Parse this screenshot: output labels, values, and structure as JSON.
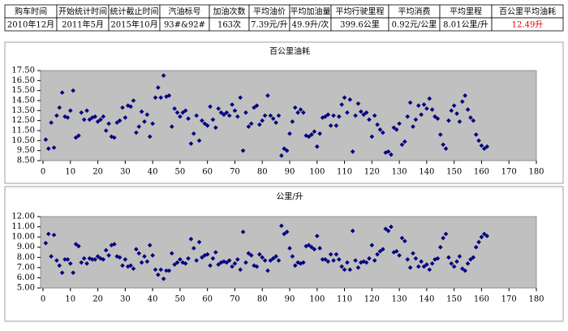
{
  "table": {
    "header": [
      "购车时间",
      "开始统计时间",
      "统计截止时间",
      "汽油标号",
      "加油次数",
      "平均油价",
      "平均加油量",
      "平均行驶里程",
      "平均消费",
      "平均里程",
      "百公里平均油耗"
    ],
    "rows": [
      [
        "2010年12月",
        "2011年5月",
        "2015年10月",
        "93#&92#",
        "163次",
        "7.39元/升",
        "49.9升/次",
        "399.6公里",
        "0.92元/公里",
        "8.01公里/升",
        "12.49升"
      ]
    ]
  },
  "chart_data": [
    {
      "type": "scatter",
      "title": "百公里油耗",
      "color": "#000080",
      "grid": false,
      "x": [
        1,
        2,
        3,
        4,
        5,
        6,
        7,
        8,
        9,
        10,
        11,
        12,
        13,
        14,
        15,
        16,
        17,
        18,
        19,
        20,
        21,
        22,
        23,
        24,
        25,
        26,
        27,
        28,
        29,
        30,
        31,
        32,
        33,
        34,
        35,
        36,
        37,
        38,
        39,
        40,
        41,
        42,
        43,
        44,
        45,
        46,
        47,
        48,
        49,
        50,
        51,
        52,
        53,
        54,
        55,
        56,
        57,
        58,
        59,
        60,
        61,
        62,
        63,
        64,
        65,
        66,
        67,
        68,
        69,
        70,
        71,
        72,
        73,
        74,
        75,
        76,
        77,
        78,
        79,
        80,
        81,
        82,
        83,
        84,
        85,
        86,
        87,
        88,
        89,
        90,
        91,
        92,
        93,
        94,
        95,
        96,
        97,
        98,
        99,
        100,
        101,
        102,
        103,
        104,
        105,
        106,
        107,
        108,
        109,
        110,
        111,
        112,
        113,
        114,
        115,
        116,
        117,
        118,
        119,
        120,
        121,
        122,
        123,
        124,
        125,
        126,
        127,
        128,
        129,
        130,
        131,
        132,
        133,
        134,
        135,
        136,
        137,
        138,
        139,
        140,
        141,
        142,
        143,
        144,
        145,
        146,
        147,
        148,
        149,
        150,
        151,
        152,
        153,
        154,
        155,
        156,
        157,
        158,
        159,
        160,
        161,
        162
      ],
      "values": [
        10.6,
        9.7,
        12.3,
        9.8,
        13.0,
        13.8,
        15.3,
        12.9,
        12.8,
        13.5,
        15.5,
        10.8,
        11.0,
        13.3,
        12.6,
        13.5,
        12.6,
        12.8,
        12.9,
        12.4,
        12.6,
        12.9,
        11.5,
        12.2,
        10.9,
        10.8,
        12.3,
        12.5,
        13.8,
        12.8,
        14.0,
        13.9,
        14.5,
        11.3,
        11.9,
        13.4,
        12.4,
        13.1,
        10.9,
        12.2,
        14.8,
        15.8,
        14.8,
        17.0,
        14.9,
        15.0,
        11.9,
        13.7,
        13.3,
        12.9,
        13.3,
        13.5,
        12.7,
        10.2,
        11.2,
        13.0,
        10.5,
        12.5,
        12.2,
        12.0,
        13.9,
        12.6,
        11.8,
        13.7,
        13.3,
        13.1,
        13.3,
        13.0,
        14.1,
        13.5,
        12.9,
        14.8,
        9.5,
        13.3,
        11.9,
        12.2,
        13.8,
        14.0,
        12.1,
        12.5,
        13.0,
        15.0,
        13.0,
        12.7,
        12.3,
        13.0,
        9.0,
        9.7,
        9.5,
        11.2,
        12.4,
        13.8,
        13.3,
        13.6,
        13.3,
        11.0,
        10.9,
        11.1,
        11.4,
        9.9,
        11.2,
        12.8,
        12.9,
        13.1,
        12.0,
        13.0,
        12.0,
        12.9,
        14.1,
        14.8,
        13.3,
        14.6,
        9.4,
        13.0,
        14.2,
        13.4,
        13.1,
        13.3,
        12.6,
        10.9,
        13.0,
        12.1,
        11.6,
        11.3,
        9.3,
        9.4,
        9.1,
        11.8,
        11.6,
        12.2,
        10.1,
        10.4,
        12.9,
        14.3,
        11.9,
        12.6,
        14.0,
        13.1,
        14.1,
        13.7,
        14.7,
        13.6,
        12.9,
        12.7,
        11.1,
        10.1,
        9.7,
        12.5,
        13.5,
        14.0,
        13.2,
        12.4,
        14.4,
        15.0,
        13.6,
        12.8,
        12.5,
        11.1,
        10.5,
        10.0,
        9.7,
        9.9
      ],
      "xlim": [
        0,
        180
      ],
      "xticks": [
        0,
        10,
        20,
        30,
        40,
        50,
        60,
        70,
        80,
        90,
        100,
        110,
        120,
        130,
        140,
        150,
        160,
        170,
        180
      ],
      "ylim": [
        8.5,
        17.5
      ],
      "yticks": [
        {
          "value": 8.5,
          "label": "8.50"
        },
        {
          "value": 9.5,
          "label": "9.50"
        },
        {
          "value": 10.5,
          "label": "10.50"
        },
        {
          "value": 11.5,
          "label": "11.50"
        },
        {
          "value": 12.5,
          "label": "12.50"
        },
        {
          "value": 13.5,
          "label": "13.50"
        },
        {
          "value": 14.5,
          "label": "14.50"
        },
        {
          "value": 15.5,
          "label": "15.50"
        },
        {
          "value": 16.5,
          "label": "16.50"
        },
        {
          "value": 17.5,
          "label": "17.50"
        }
      ]
    },
    {
      "type": "scatter",
      "title": "公里/升",
      "color": "#000080",
      "grid": false,
      "x": [
        1,
        2,
        3,
        4,
        5,
        6,
        7,
        8,
        9,
        10,
        11,
        12,
        13,
        14,
        15,
        16,
        17,
        18,
        19,
        20,
        21,
        22,
        23,
        24,
        25,
        26,
        27,
        28,
        29,
        30,
        31,
        32,
        33,
        34,
        35,
        36,
        37,
        38,
        39,
        40,
        41,
        42,
        43,
        44,
        45,
        46,
        47,
        48,
        49,
        50,
        51,
        52,
        53,
        54,
        55,
        56,
        57,
        58,
        59,
        60,
        61,
        62,
        63,
        64,
        65,
        66,
        67,
        68,
        69,
        70,
        71,
        72,
        73,
        74,
        75,
        76,
        77,
        78,
        79,
        80,
        81,
        82,
        83,
        84,
        85,
        86,
        87,
        88,
        89,
        90,
        91,
        92,
        93,
        94,
        95,
        96,
        97,
        98,
        99,
        100,
        101,
        102,
        103,
        104,
        105,
        106,
        107,
        108,
        109,
        110,
        111,
        112,
        113,
        114,
        115,
        116,
        117,
        118,
        119,
        120,
        121,
        122,
        123,
        124,
        125,
        126,
        127,
        128,
        129,
        130,
        131,
        132,
        133,
        134,
        135,
        136,
        137,
        138,
        139,
        140,
        141,
        142,
        143,
        144,
        145,
        146,
        147,
        148,
        149,
        150,
        151,
        152,
        153,
        154,
        155,
        156,
        157,
        158,
        159,
        160,
        161,
        162
      ],
      "values": [
        9.4,
        10.3,
        8.1,
        10.2,
        7.7,
        7.2,
        6.5,
        7.8,
        7.8,
        7.4,
        6.5,
        9.3,
        9.1,
        7.5,
        7.9,
        7.4,
        7.9,
        7.8,
        7.8,
        8.1,
        7.9,
        7.8,
        8.7,
        8.2,
        9.2,
        9.3,
        8.1,
        8.0,
        7.2,
        7.8,
        7.1,
        7.2,
        6.9,
        8.8,
        8.4,
        7.5,
        8.1,
        7.6,
        9.2,
        8.2,
        6.8,
        6.3,
        6.8,
        5.9,
        6.7,
        6.7,
        8.4,
        7.3,
        7.5,
        7.8,
        7.5,
        7.4,
        7.9,
        9.8,
        8.9,
        7.7,
        9.5,
        8.0,
        8.2,
        8.3,
        7.2,
        7.9,
        8.5,
        7.3,
        7.5,
        7.6,
        7.5,
        7.7,
        7.1,
        7.4,
        7.8,
        6.8,
        10.5,
        7.5,
        8.4,
        8.2,
        7.2,
        7.1,
        8.3,
        8.0,
        7.7,
        6.7,
        7.7,
        7.9,
        8.1,
        7.7,
        11.1,
        10.3,
        10.5,
        8.9,
        8.1,
        7.2,
        7.5,
        7.4,
        7.5,
        9.1,
        9.2,
        9.0,
        8.8,
        10.1,
        8.9,
        7.8,
        7.8,
        7.6,
        8.3,
        7.7,
        8.3,
        7.8,
        7.1,
        6.8,
        7.5,
        6.8,
        10.6,
        7.7,
        7.0,
        7.5,
        7.6,
        7.5,
        7.9,
        9.2,
        7.7,
        8.3,
        8.6,
        8.8,
        10.8,
        10.6,
        11.0,
        8.5,
        8.6,
        8.2,
        9.9,
        9.6,
        7.8,
        7.0,
        8.4,
        7.9,
        7.1,
        7.6,
        7.1,
        7.3,
        6.8,
        7.4,
        7.8,
        7.9,
        9.0,
        9.9,
        10.3,
        8.0,
        7.4,
        7.1,
        7.6,
        8.1,
        6.9,
        6.7,
        7.4,
        7.8,
        8.0,
        9.0,
        9.5,
        10.0,
        10.3,
        10.1
      ],
      "xlim": [
        0,
        180
      ],
      "xticks": [
        0,
        10,
        20,
        30,
        40,
        50,
        60,
        70,
        80,
        90,
        100,
        110,
        120,
        130,
        140,
        150,
        160,
        170,
        180
      ],
      "ylim": [
        5,
        12
      ],
      "yticks": [
        {
          "value": 5,
          "label": "5.00"
        },
        {
          "value": 6,
          "label": "6.00"
        },
        {
          "value": 7,
          "label": "7.00"
        },
        {
          "value": 8,
          "label": "8.00"
        },
        {
          "value": 9,
          "label": "9.00"
        },
        {
          "value": 10,
          "label": "10.00"
        },
        {
          "value": 11,
          "label": "11.00"
        },
        {
          "value": 12,
          "label": "12.00"
        }
      ]
    }
  ]
}
